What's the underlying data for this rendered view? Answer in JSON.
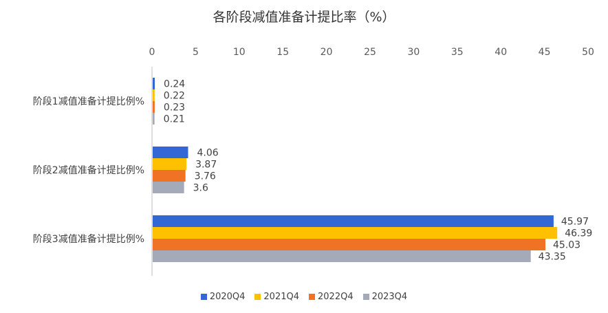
{
  "chart_data": {
    "type": "bar",
    "orientation": "horizontal",
    "title": "各阶段减值准备计提比率（%）",
    "categories": [
      "阶段1减值准备计提比例%",
      "阶段2减值准备计提比例%",
      "阶段3减值准备计提比例%"
    ],
    "series": [
      {
        "name": "2020Q4",
        "color": "#3367D6",
        "values": [
          0.24,
          4.06,
          45.97
        ]
      },
      {
        "name": "2021Q4",
        "color": "#FFC000",
        "values": [
          0.22,
          3.87,
          46.39
        ]
      },
      {
        "name": "2022Q4",
        "color": "#F07224",
        "values": [
          0.23,
          3.76,
          45.03
        ]
      },
      {
        "name": "2023Q4",
        "color": "#A5AAB8",
        "values": [
          0.21,
          3.6,
          43.35
        ]
      }
    ],
    "data_labels": [
      [
        "0.24",
        "4.06",
        "45.97"
      ],
      [
        "0.22",
        "3.87",
        "46.39"
      ],
      [
        "0.23",
        "3.76",
        "45.03"
      ],
      [
        "0.21",
        "3.6",
        "43.35"
      ]
    ],
    "xlim": [
      0,
      50
    ],
    "x_ticks": [
      "0",
      "5",
      "10",
      "15",
      "20",
      "25",
      "30",
      "35",
      "40",
      "45",
      "50"
    ],
    "grid": false,
    "axis_position": "top",
    "legend_position": "bottom"
  }
}
